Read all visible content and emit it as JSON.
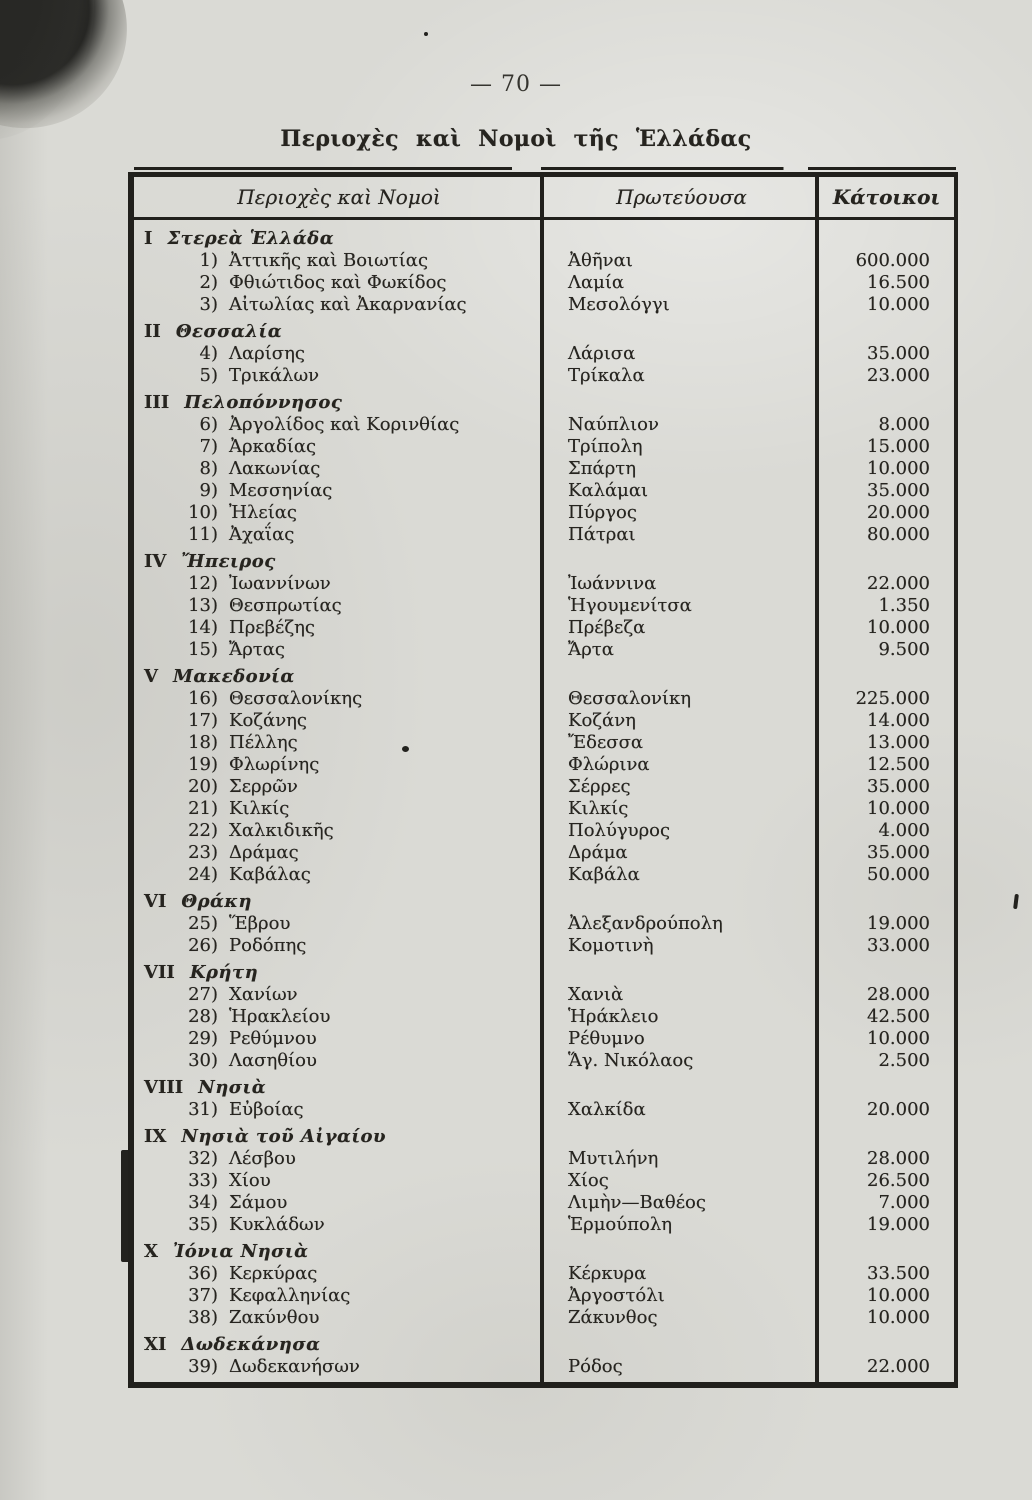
{
  "page": {
    "number": "— 70 —",
    "title": "Περιοχὲς καὶ Νομοὶ τῆς Ἑλλάδας"
  },
  "colors": {
    "paper": "#dadad5",
    "ink": "#21201c"
  },
  "table": {
    "headers": {
      "regions": "Περιοχὲς καὶ Νομοὶ",
      "capital": "Πρωτεύουσα",
      "inhabitants": "Κάτοικοι"
    },
    "sections": [
      {
        "numeral": "I",
        "name": "Στερεὰ Ἑλλάδα",
        "rows": [
          {
            "no": "1)",
            "region": "Ἀττικῆς καὶ Βοιωτίας",
            "capital": "Ἀθῆναι",
            "population": "600.000"
          },
          {
            "no": "2)",
            "region": "Φθιώτιδος καὶ Φωκίδος",
            "capital": "Λαμία",
            "population": "16.500"
          },
          {
            "no": "3)",
            "region": "Αἰτωλίας καὶ Ἀκαρνανίας",
            "capital": "Μεσολόγγι",
            "population": "10.000"
          }
        ]
      },
      {
        "numeral": "II",
        "name": "Θεσσαλία",
        "rows": [
          {
            "no": "4)",
            "region": "Λαρίσης",
            "capital": "Λάρισα",
            "population": "35.000"
          },
          {
            "no": "5)",
            "region": "Τρικάλων",
            "capital": "Τρίκαλα",
            "population": "23.000"
          }
        ]
      },
      {
        "numeral": "III",
        "name": "Πελοπόννησος",
        "rows": [
          {
            "no": "6)",
            "region": "Ἀργολίδος καὶ Κορινθίας",
            "capital": "Ναύπλιον",
            "population": "8.000"
          },
          {
            "no": "7)",
            "region": "Ἀρκαδίας",
            "capital": "Τρίπολη",
            "population": "15.000"
          },
          {
            "no": "8)",
            "region": "Λακωνίας",
            "capital": "Σπάρτη",
            "population": "10.000"
          },
          {
            "no": "9)",
            "region": "Μεσσηνίας",
            "capital": "Καλάμαι",
            "population": "35.000"
          },
          {
            "no": "10)",
            "region": "Ἠλείας",
            "capital": "Πύργος",
            "population": "20.000"
          },
          {
            "no": "11)",
            "region": "Ἀχαΐας",
            "capital": "Πάτραι",
            "population": "80.000"
          }
        ]
      },
      {
        "numeral": "IV",
        "name": "Ἤπειρος",
        "rows": [
          {
            "no": "12)",
            "region": "Ἰωαννίνων",
            "capital": "Ἰωάννινα",
            "population": "22.000"
          },
          {
            "no": "13)",
            "region": "Θεσπρωτίας",
            "capital": "Ἡγουμενίτσα",
            "population": "1.350"
          },
          {
            "no": "14)",
            "region": "Πρεβέζης",
            "capital": "Πρέβεζα",
            "population": "10.000"
          },
          {
            "no": "15)",
            "region": "Ἄρτας",
            "capital": "Ἄρτα",
            "population": "9.500"
          }
        ]
      },
      {
        "numeral": "V",
        "name": "Μακεδονία",
        "rows": [
          {
            "no": "16)",
            "region": "Θεσσαλονίκης",
            "capital": "Θεσσαλονίκη",
            "population": "225.000"
          },
          {
            "no": "17)",
            "region": "Κοζάνης",
            "capital": "Κοζάνη",
            "population": "14.000"
          },
          {
            "no": "18)",
            "region": "Πέλλης",
            "capital": "Ἔδεσσα",
            "population": "13.000"
          },
          {
            "no": "19)",
            "region": "Φλωρίνης",
            "capital": "Φλώρινα",
            "population": "12.500"
          },
          {
            "no": "20)",
            "region": "Σερρῶν",
            "capital": "Σέρρες",
            "population": "35.000"
          },
          {
            "no": "21)",
            "region": "Κιλκίς",
            "capital": "Κιλκίς",
            "population": "10.000"
          },
          {
            "no": "22)",
            "region": "Χαλκιδικῆς",
            "capital": "Πολύγυρος",
            "population": "4.000"
          },
          {
            "no": "23)",
            "region": "Δράμας",
            "capital": "Δράμα",
            "population": "35.000"
          },
          {
            "no": "24)",
            "region": "Καβάλας",
            "capital": "Καβάλα",
            "population": "50.000"
          }
        ]
      },
      {
        "numeral": "VI",
        "name": "Θράκη",
        "rows": [
          {
            "no": "25)",
            "region": "Ἕβρου",
            "capital": "Ἀλεξανδρούπολη",
            "population": "19.000"
          },
          {
            "no": "26)",
            "region": "Ροδόπης",
            "capital": "Κομοτινὴ",
            "population": "33.000"
          }
        ]
      },
      {
        "numeral": "VII",
        "name": "Κρήτη",
        "rows": [
          {
            "no": "27)",
            "region": "Χανίων",
            "capital": "Χανιὰ",
            "population": "28.000"
          },
          {
            "no": "28)",
            "region": "Ἡρακλείου",
            "capital": "Ἡράκλειο",
            "population": "42.500"
          },
          {
            "no": "29)",
            "region": "Ρεθύμνου",
            "capital": "Ρέθυμνο",
            "population": "10.000"
          },
          {
            "no": "30)",
            "region": "Λασηθίου",
            "capital": "Ἅγ. Νικόλαος",
            "population": "2.500"
          }
        ]
      },
      {
        "numeral": "VIII",
        "name": "Νησιὰ",
        "rows": [
          {
            "no": "31)",
            "region": "Εὐβοίας",
            "capital": "Χαλκίδα",
            "population": "20.000"
          }
        ]
      },
      {
        "numeral": "IX",
        "name": "Νησιὰ τοῦ Αἰγαίου",
        "rows": [
          {
            "no": "32)",
            "region": "Λέσβου",
            "capital": "Μυτιλήνη",
            "population": "28.000"
          },
          {
            "no": "33)",
            "region": "Χίου",
            "capital": "Χίος",
            "population": "26.500"
          },
          {
            "no": "34)",
            "region": "Σάμου",
            "capital": "Λιμὴν—Βαθέος",
            "population": "7.000"
          },
          {
            "no": "35)",
            "region": "Κυκλάδων",
            "capital": "Ἑρμούπολη",
            "population": "19.000"
          }
        ]
      },
      {
        "numeral": "X",
        "name": "Ἰόνια Νησιὰ",
        "rows": [
          {
            "no": "36)",
            "region": "Κερκύρας",
            "capital": "Κέρκυρα",
            "population": "33.500"
          },
          {
            "no": "37)",
            "region": "Κεφαλληνίας",
            "capital": "Ἀργοστόλι",
            "population": "10.000"
          },
          {
            "no": "38)",
            "region": "Ζακύνθου",
            "capital": "Ζάκυνθος",
            "population": "10.000"
          }
        ]
      },
      {
        "numeral": "XI",
        "name": "Δωδεκάνησα",
        "rows": [
          {
            "no": "39)",
            "region": "Δωδεκανήσων",
            "capital": "Ρόδος",
            "population": "22.000"
          }
        ]
      }
    ]
  }
}
